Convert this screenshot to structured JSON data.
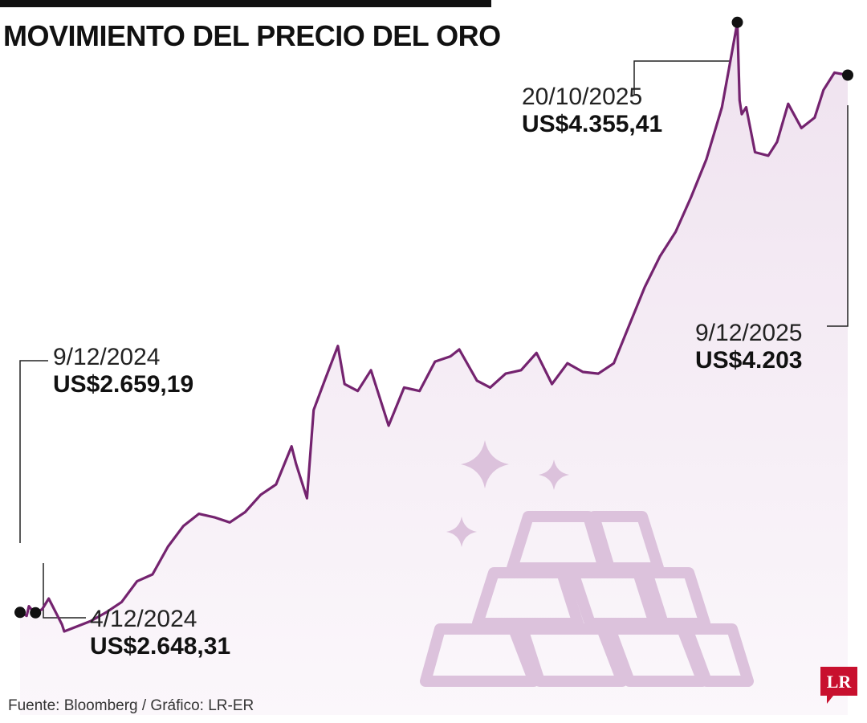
{
  "title": "MOVIMIENTO DEL PRECIO DEL ORO",
  "source": "Fuente: Bloomberg / Gráfico: LR-ER",
  "logo": "LR",
  "colors": {
    "line": "#74236f",
    "fill": "#f1e6f1",
    "illustration": "#dcc2dc",
    "logo": "#c8102e"
  },
  "illustration_icons": [
    "sparkle-icon",
    "gold-bars-icon"
  ],
  "annotations": {
    "start": {
      "date": "9/12/2024",
      "value": "US$2.659,19"
    },
    "min": {
      "date": "4/12/2024",
      "value": "US$2.648,31"
    },
    "max": {
      "date": "20/10/2025",
      "value": "US$4.355,41"
    },
    "end": {
      "date": "9/12/2025",
      "value": "US$4.203"
    }
  },
  "chart_data": {
    "type": "area",
    "title": "MOVIMIENTO DEL PRECIO DEL ORO",
    "xlabel": "",
    "ylabel": "",
    "grid": false,
    "x": [
      "2024-11-29",
      "2024-12-02",
      "2024-12-03",
      "2024-12-04",
      "2024-12-05",
      "2024-12-06",
      "2024-12-09",
      "2024-12-12",
      "2024-12-18",
      "2024-12-19",
      "2024-12-31",
      "2025-01-07",
      "2025-01-14",
      "2025-01-21",
      "2025-01-28",
      "2025-02-04",
      "2025-02-11",
      "2025-02-18",
      "2025-02-25",
      "2025-03-04",
      "2025-03-11",
      "2025-03-18",
      "2025-03-25",
      "2025-04-01",
      "2025-04-03",
      "2025-04-08",
      "2025-04-11",
      "2025-04-16",
      "2025-04-22",
      "2025-04-25",
      "2025-05-01",
      "2025-05-07",
      "2025-05-15",
      "2025-05-22",
      "2025-05-29",
      "2025-06-05",
      "2025-06-12",
      "2025-06-16",
      "2025-06-24",
      "2025-06-30",
      "2025-07-07",
      "2025-07-14",
      "2025-07-21",
      "2025-07-28",
      "2025-08-04",
      "2025-08-11",
      "2025-08-18",
      "2025-08-25",
      "2025-09-01",
      "2025-09-08",
      "2025-09-15",
      "2025-09-22",
      "2025-09-29",
      "2025-10-06",
      "2025-10-13",
      "2025-10-17",
      "2025-10-20",
      "2025-10-21",
      "2025-10-22",
      "2025-10-24",
      "2025-10-28",
      "2025-11-03",
      "2025-11-07",
      "2025-11-12",
      "2025-11-18",
      "2025-11-24",
      "2025-11-28",
      "2025-12-03",
      "2025-12-09"
    ],
    "series": [
      {
        "values": [
          2650,
          2640,
          2668,
          2660,
          2655,
          2649,
          2659.19,
          2690,
          2615,
          2595,
          2625,
          2650,
          2680,
          2740,
          2760,
          2840,
          2900,
          2935,
          2925,
          2910,
          2940,
          2990,
          3020,
          3130,
          3080,
          2980,
          3235,
          3320,
          3420,
          3310,
          3290,
          3350,
          3190,
          3300,
          3290,
          3375,
          3390,
          3410,
          3320,
          3300,
          3340,
          3350,
          3400,
          3310,
          3370,
          3345,
          3340,
          3370,
          3480,
          3590,
          3680,
          3750,
          3850,
          3960,
          4110,
          4250,
          4355.41,
          4130,
          4090,
          4110,
          3980,
          3970,
          4010,
          4120,
          4050,
          4080,
          4160,
          4210,
          4203
        ]
      }
    ],
    "ylim": [
      2400,
      4420
    ]
  }
}
